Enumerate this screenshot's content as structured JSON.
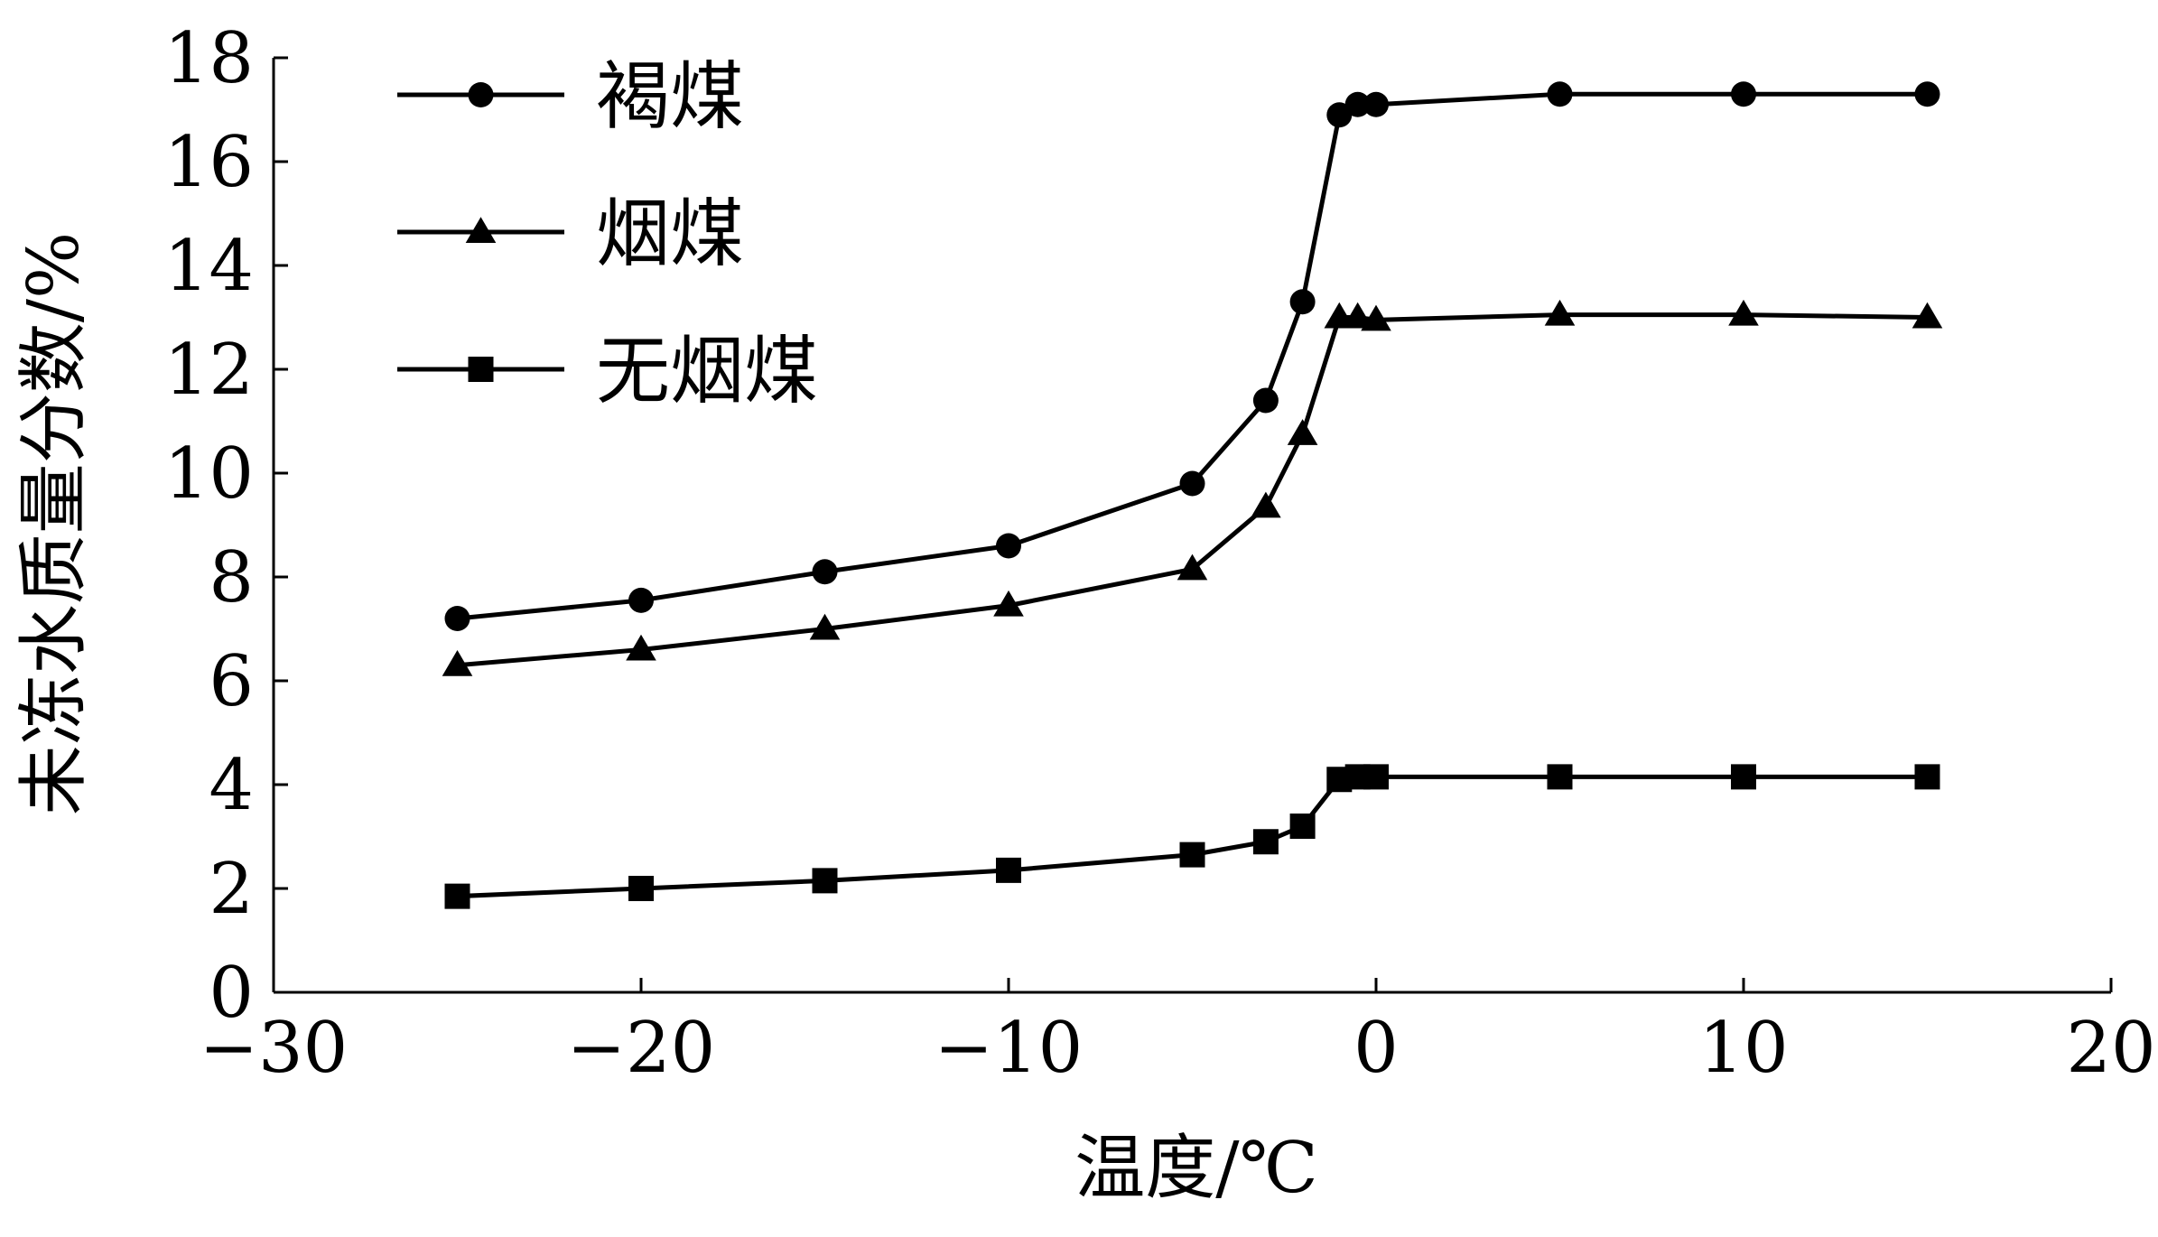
{
  "chart_data": {
    "type": "line",
    "title": "",
    "xlabel": "温度/℃",
    "ylabel": "未冻水质量分数/%",
    "xlim": [
      -30,
      20
    ],
    "ylim": [
      0,
      18
    ],
    "xticks": [
      -30,
      -20,
      -10,
      0,
      10,
      20
    ],
    "yticks": [
      0,
      2,
      4,
      6,
      8,
      10,
      12,
      14,
      16,
      18
    ],
    "xtick_labels": [
      "−30",
      "−20",
      "−10",
      "0",
      "10",
      "20"
    ],
    "ytick_labels": [
      "0",
      "2",
      "4",
      "6",
      "8",
      "10",
      "12",
      "14",
      "16",
      "18"
    ],
    "grid": false,
    "legend_position": "top-left",
    "series": [
      {
        "name": "褐煤",
        "marker": "circle",
        "color": "#000000",
        "x": [
          -25,
          -20,
          -15,
          -10,
          -5,
          -3,
          -2,
          -1,
          -0.5,
          0,
          5,
          10,
          15
        ],
        "y": [
          7.2,
          7.55,
          8.1,
          8.6,
          9.8,
          11.4,
          13.3,
          16.9,
          17.1,
          17.1,
          17.3,
          17.3,
          17.3
        ]
      },
      {
        "name": "烟煤",
        "marker": "triangle",
        "color": "#000000",
        "x": [
          -25,
          -20,
          -15,
          -10,
          -5,
          -3,
          -2,
          -1,
          -0.5,
          0,
          5,
          10,
          15
        ],
        "y": [
          6.3,
          6.6,
          7.0,
          7.45,
          8.15,
          9.35,
          10.75,
          13.0,
          13.0,
          12.95,
          13.05,
          13.05,
          13.0
        ]
      },
      {
        "name": "无烟煤",
        "marker": "square",
        "color": "#000000",
        "x": [
          -25,
          -20,
          -15,
          -10,
          -5,
          -3,
          -2,
          -1,
          -0.5,
          0,
          5,
          10,
          15
        ],
        "y": [
          1.85,
          2.0,
          2.15,
          2.35,
          2.65,
          2.9,
          3.2,
          4.1,
          4.15,
          4.15,
          4.15,
          4.15,
          4.15
        ]
      }
    ]
  }
}
